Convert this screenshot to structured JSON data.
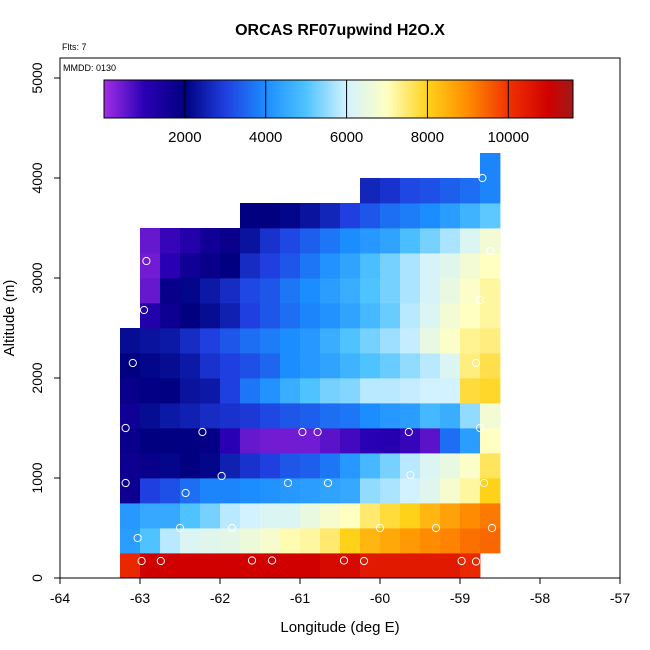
{
  "chart_data": {
    "type": "heatmap",
    "title": "ORCAS RF07upwind H2O.X",
    "xlabel": "Longitude (deg E)",
    "ylabel": "Altitude (m)",
    "xlim": [
      -64,
      -57
    ],
    "ylim": [
      0,
      5200
    ],
    "xticks": [
      -64,
      -63,
      -62,
      -61,
      -60,
      -59,
      -58,
      -57
    ],
    "yticks": [
      0,
      1000,
      2000,
      3000,
      4000,
      5000
    ],
    "annotations": {
      "flts": "Flts: 7",
      "mmdd": "MMDD: 0130"
    },
    "colorbar": {
      "range": [
        0,
        11600
      ],
      "ticks": [
        2000,
        4000,
        6000,
        8000,
        10000
      ],
      "stops": [
        {
          "v": 0,
          "c": "#a12fe6"
        },
        {
          "v": 1000,
          "c": "#2a00b5"
        },
        {
          "v": 2000,
          "c": "#000080"
        },
        {
          "v": 3000,
          "c": "#1f3fe0"
        },
        {
          "v": 4000,
          "c": "#1c8dff"
        },
        {
          "v": 5000,
          "c": "#4fc3ff"
        },
        {
          "v": 6000,
          "c": "#d2f2ff"
        },
        {
          "v": 7000,
          "c": "#ffffc2"
        },
        {
          "v": 8000,
          "c": "#ffd21a"
        },
        {
          "v": 9000,
          "c": "#ff8c00"
        },
        {
          "v": 10000,
          "c": "#f03200"
        },
        {
          "v": 11000,
          "c": "#d00000"
        },
        {
          "v": 11600,
          "c": "#a01a1a"
        }
      ]
    },
    "grid": {
      "x0": -63.25,
      "dx": 0.25,
      "y0": 0,
      "dy": 250,
      "rows": [
        [
          10200,
          11000,
          11000,
          11000,
          11000,
          11000,
          11000,
          11000,
          11000,
          11000,
          10800,
          10800,
          10500,
          10500,
          10500,
          10500,
          10500,
          10200,
          null
        ],
        [
          4300,
          5000,
          5800,
          6200,
          6300,
          6400,
          6600,
          6800,
          7100,
          7200,
          7500,
          8000,
          8400,
          8600,
          8800,
          9000,
          9100,
          9300,
          9400
        ],
        [
          4200,
          4500,
          4500,
          5000,
          5300,
          5800,
          6000,
          6200,
          6200,
          6500,
          6800,
          7000,
          7500,
          7800,
          8000,
          8400,
          8700,
          9000,
          9200
        ],
        [
          1700,
          3000,
          3200,
          3600,
          3900,
          3900,
          4000,
          4100,
          4200,
          4300,
          4400,
          4500,
          5500,
          5700,
          6000,
          6300,
          6800,
          7200,
          8000
        ],
        [
          1700,
          1800,
          2100,
          2000,
          2100,
          2500,
          2800,
          3000,
          3300,
          3400,
          3700,
          4200,
          4800,
          5300,
          5800,
          6200,
          6500,
          6900,
          7600
        ],
        [
          1800,
          2000,
          2000,
          2000,
          1900,
          1000,
          500,
          400,
          400,
          400,
          600,
          800,
          1000,
          1100,
          900,
          600,
          3600,
          4300,
          7000
        ],
        [
          1600,
          2200,
          2400,
          2500,
          2700,
          2800,
          2900,
          3100,
          3300,
          3400,
          3600,
          3700,
          4000,
          4200,
          4300,
          4800,
          4600,
          5500,
          6700
        ],
        [
          1800,
          1900,
          2000,
          2300,
          2400,
          3000,
          3700,
          4100,
          4600,
          5000,
          5300,
          5400,
          5800,
          5800,
          5900,
          6000,
          6000,
          7800,
          7900
        ],
        [
          2000,
          2100,
          2200,
          2400,
          2800,
          3000,
          3200,
          3500,
          4000,
          4200,
          4400,
          4700,
          5000,
          5200,
          5500,
          5800,
          6200,
          7400,
          7700
        ],
        [
          2200,
          2300,
          2400,
          2700,
          3000,
          3300,
          3600,
          3800,
          4000,
          4200,
          4600,
          5000,
          5300,
          5600,
          5900,
          6500,
          6900,
          7300,
          7400
        ],
        [
          null,
          1200,
          1700,
          2000,
          2200,
          2500,
          3000,
          3300,
          3600,
          3900,
          4100,
          4400,
          4800,
          5200,
          5800,
          6200,
          6700,
          7000,
          7200
        ],
        [
          null,
          500,
          1800,
          2100,
          2400,
          2700,
          3100,
          3300,
          3700,
          4000,
          4300,
          4600,
          5000,
          5300,
          5700,
          6100,
          6500,
          6900,
          7200
        ],
        [
          null,
          400,
          1000,
          1600,
          1800,
          2000,
          2700,
          3000,
          3300,
          3700,
          4100,
          4400,
          4900,
          5300,
          5700,
          6100,
          6300,
          6700,
          7000
        ],
        [
          null,
          500,
          900,
          1200,
          1600,
          1800,
          2300,
          2800,
          3100,
          3400,
          3700,
          4000,
          4200,
          4400,
          4900,
          5300,
          5700,
          6200,
          6700
        ],
        [
          null,
          null,
          null,
          null,
          null,
          null,
          2000,
          2000,
          2100,
          2300,
          2600,
          3000,
          3300,
          3600,
          3800,
          4000,
          4300,
          4700,
          5100
        ],
        [
          null,
          null,
          null,
          null,
          null,
          null,
          null,
          null,
          null,
          null,
          null,
          null,
          2600,
          2800,
          3100,
          3200,
          3400,
          3600,
          3900
        ],
        [
          null,
          null,
          null,
          null,
          null,
          null,
          null,
          null,
          null,
          null,
          null,
          null,
          null,
          null,
          null,
          null,
          null,
          null,
          3900
        ]
      ]
    },
    "points": [
      {
        "x": -62.98,
        "y": 170
      },
      {
        "x": -62.74,
        "y": 170
      },
      {
        "x": -61.6,
        "y": 175
      },
      {
        "x": -61.35,
        "y": 175
      },
      {
        "x": -60.45,
        "y": 175
      },
      {
        "x": -60.2,
        "y": 170
      },
      {
        "x": -58.98,
        "y": 170
      },
      {
        "x": -58.8,
        "y": 165
      },
      {
        "x": -63.03,
        "y": 400
      },
      {
        "x": -62.5,
        "y": 500
      },
      {
        "x": -61.85,
        "y": 500
      },
      {
        "x": -60.0,
        "y": 500
      },
      {
        "x": -59.3,
        "y": 500
      },
      {
        "x": -58.6,
        "y": 500
      },
      {
        "x": -63.18,
        "y": 950
      },
      {
        "x": -62.43,
        "y": 850
      },
      {
        "x": -61.98,
        "y": 1020
      },
      {
        "x": -61.15,
        "y": 950
      },
      {
        "x": -60.65,
        "y": 950
      },
      {
        "x": -59.62,
        "y": 1030
      },
      {
        "x": -58.7,
        "y": 950
      },
      {
        "x": -63.18,
        "y": 1500
      },
      {
        "x": -62.22,
        "y": 1460
      },
      {
        "x": -60.97,
        "y": 1460
      },
      {
        "x": -60.78,
        "y": 1460
      },
      {
        "x": -59.64,
        "y": 1460
      },
      {
        "x": -58.75,
        "y": 1500
      },
      {
        "x": -63.09,
        "y": 2150
      },
      {
        "x": -58.8,
        "y": 2150
      },
      {
        "x": -62.95,
        "y": 2680
      },
      {
        "x": -58.75,
        "y": 2780
      },
      {
        "x": -62.92,
        "y": 3170
      },
      {
        "x": -58.62,
        "y": 3270
      },
      {
        "x": -58.72,
        "y": 4000
      }
    ]
  }
}
